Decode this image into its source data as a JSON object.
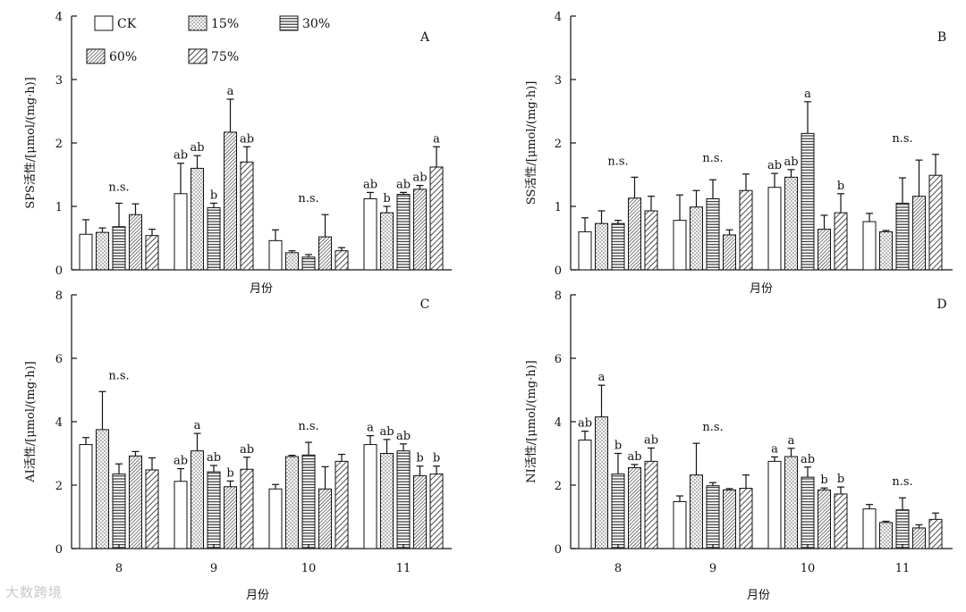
{
  "legend": {
    "items": [
      {
        "label": "CK",
        "pattern": "blank"
      },
      {
        "label": "15%",
        "pattern": "dots"
      },
      {
        "label": "30%",
        "pattern": "hlines"
      },
      {
        "label": "60%",
        "pattern": "diag-dense"
      },
      {
        "label": "75%",
        "pattern": "diag"
      }
    ]
  },
  "watermark": "大数跨境",
  "chart_data": [
    {
      "id": "A",
      "type": "bar",
      "panel_letter": "A",
      "ylabel": "SPS活性/[μmol/(mg·h)]",
      "xlabel": "月份",
      "ylim": [
        0,
        4
      ],
      "yticks": [
        "0",
        "1",
        "2",
        "3",
        "4"
      ],
      "show_xticks": false,
      "categories": [
        "8",
        "9",
        "10",
        "11"
      ],
      "series": [
        {
          "name": "CK",
          "values": [
            0.56,
            1.2,
            0.46,
            1.12
          ],
          "errors": [
            0.23,
            0.48,
            0.17,
            0.1
          ]
        },
        {
          "name": "15%",
          "values": [
            0.59,
            1.6,
            0.27,
            0.9
          ],
          "errors": [
            0.07,
            0.2,
            0.03,
            0.1
          ]
        },
        {
          "name": "30%",
          "values": [
            0.68,
            0.98,
            0.2,
            1.19
          ],
          "errors": [
            0.37,
            0.07,
            0.04,
            0.03
          ]
        },
        {
          "name": "60%",
          "values": [
            0.87,
            2.17,
            0.52,
            1.27
          ],
          "errors": [
            0.17,
            0.52,
            0.35,
            0.06
          ]
        },
        {
          "name": "75%",
          "values": [
            0.54,
            1.7,
            0.3,
            1.62
          ],
          "errors": [
            0.1,
            0.24,
            0.05,
            0.32
          ]
        }
      ],
      "group_labels": [
        {
          "group": 0,
          "text": "n.s."
        },
        {
          "group": 2,
          "text": "n.s."
        }
      ],
      "bar_labels": [
        {
          "group": 1,
          "series": 0,
          "text": "ab"
        },
        {
          "group": 1,
          "series": 1,
          "text": "ab"
        },
        {
          "group": 1,
          "series": 2,
          "text": "b"
        },
        {
          "group": 1,
          "series": 3,
          "text": "a"
        },
        {
          "group": 1,
          "series": 4,
          "text": "ab"
        },
        {
          "group": 3,
          "series": 0,
          "text": "ab"
        },
        {
          "group": 3,
          "series": 1,
          "text": "b"
        },
        {
          "group": 3,
          "series": 2,
          "text": "ab"
        },
        {
          "group": 3,
          "series": 3,
          "text": "ab"
        },
        {
          "group": 3,
          "series": 4,
          "text": "a"
        }
      ]
    },
    {
      "id": "B",
      "type": "bar",
      "panel_letter": "B",
      "ylabel": "SS活性/[μmol/(mg·h)]",
      "xlabel": "月份",
      "ylim": [
        0,
        4
      ],
      "yticks": [
        "0",
        "1",
        "2",
        "3",
        "4"
      ],
      "show_xticks": false,
      "categories": [
        "8",
        "9",
        "10",
        "11"
      ],
      "series": [
        {
          "name": "CK",
          "values": [
            0.6,
            0.78,
            1.3,
            0.76
          ],
          "errors": [
            0.22,
            0.4,
            0.22,
            0.13
          ]
        },
        {
          "name": "15%",
          "values": [
            0.73,
            0.99,
            1.46,
            0.6
          ],
          "errors": [
            0.2,
            0.26,
            0.12,
            0.02
          ]
        },
        {
          "name": "30%",
          "values": [
            0.73,
            1.12,
            2.15,
            1.05
          ],
          "errors": [
            0.05,
            0.3,
            0.5,
            0.4
          ]
        },
        {
          "name": "60%",
          "values": [
            1.13,
            0.55,
            0.64,
            1.16
          ],
          "errors": [
            0.33,
            0.08,
            0.22,
            0.57
          ]
        },
        {
          "name": "75%",
          "values": [
            0.93,
            1.25,
            0.9,
            1.49
          ],
          "errors": [
            0.23,
            0.26,
            0.3,
            0.33
          ]
        }
      ],
      "group_labels": [
        {
          "group": 0,
          "text": "n.s."
        },
        {
          "group": 1,
          "text": "n.s."
        },
        {
          "group": 3,
          "text": "n.s."
        }
      ],
      "bar_labels": [
        {
          "group": 2,
          "series": 0,
          "text": "ab"
        },
        {
          "group": 2,
          "series": 1,
          "text": "ab"
        },
        {
          "group": 2,
          "series": 2,
          "text": "a"
        },
        {
          "group": 2,
          "series": 4,
          "text": "b"
        }
      ]
    },
    {
      "id": "C",
      "type": "bar",
      "panel_letter": "C",
      "ylabel": "AI活性/[μmol/(mg·h)]",
      "xlabel": "月份",
      "ylim": [
        0,
        8
      ],
      "yticks": [
        "0",
        "2",
        "4",
        "6",
        "8"
      ],
      "show_xticks": true,
      "categories": [
        "8",
        "9",
        "10",
        "11"
      ],
      "series": [
        {
          "name": "CK",
          "values": [
            3.28,
            2.12,
            1.88,
            3.28
          ],
          "errors": [
            0.22,
            0.4,
            0.14,
            0.28
          ]
        },
        {
          "name": "15%",
          "values": [
            3.75,
            3.08,
            2.9,
            3.0
          ],
          "errors": [
            1.2,
            0.55,
            0.04,
            0.44
          ]
        },
        {
          "name": "30%",
          "values": [
            2.35,
            2.42,
            2.95,
            3.08
          ],
          "errors": [
            0.32,
            0.2,
            0.4,
            0.22
          ]
        },
        {
          "name": "60%",
          "values": [
            2.92,
            1.95,
            1.88,
            2.3
          ],
          "errors": [
            0.14,
            0.18,
            0.7,
            0.3
          ]
        },
        {
          "name": "75%",
          "values": [
            2.48,
            2.5,
            2.75,
            2.35
          ],
          "errors": [
            0.38,
            0.38,
            0.22,
            0.25
          ]
        }
      ],
      "group_labels": [
        {
          "group": 0,
          "text": "n.s."
        },
        {
          "group": 2,
          "text": "n.s."
        }
      ],
      "bar_labels": [
        {
          "group": 1,
          "series": 0,
          "text": "ab"
        },
        {
          "group": 1,
          "series": 1,
          "text": "a"
        },
        {
          "group": 1,
          "series": 2,
          "text": "ab"
        },
        {
          "group": 1,
          "series": 3,
          "text": "b"
        },
        {
          "group": 1,
          "series": 4,
          "text": "ab"
        },
        {
          "group": 3,
          "series": 0,
          "text": "a"
        },
        {
          "group": 3,
          "series": 1,
          "text": "ab"
        },
        {
          "group": 3,
          "series": 2,
          "text": "ab"
        },
        {
          "group": 3,
          "series": 3,
          "text": "b"
        },
        {
          "group": 3,
          "series": 4,
          "text": "b"
        }
      ]
    },
    {
      "id": "D",
      "type": "bar",
      "panel_letter": "D",
      "ylabel": "NI活性/[μmol/(mg·h)]",
      "xlabel": "月份",
      "ylim": [
        0,
        8
      ],
      "yticks": [
        "0",
        "2",
        "4",
        "6",
        "8"
      ],
      "show_xticks": true,
      "categories": [
        "8",
        "9",
        "10",
        "11"
      ],
      "series": [
        {
          "name": "CK",
          "values": [
            3.42,
            1.48,
            2.75,
            1.25
          ],
          "errors": [
            0.28,
            0.18,
            0.14,
            0.14
          ]
        },
        {
          "name": "15%",
          "values": [
            4.15,
            2.32,
            2.9,
            0.82
          ],
          "errors": [
            1.0,
            1.0,
            0.26,
            0.04
          ]
        },
        {
          "name": "30%",
          "values": [
            2.35,
            1.98,
            2.25,
            1.22
          ],
          "errors": [
            0.65,
            0.1,
            0.32,
            0.38
          ]
        },
        {
          "name": "60%",
          "values": [
            2.55,
            1.85,
            1.85,
            0.65
          ],
          "errors": [
            0.1,
            0.04,
            0.06,
            0.1
          ]
        },
        {
          "name": "75%",
          "values": [
            2.75,
            1.9,
            1.72,
            0.92
          ],
          "errors": [
            0.42,
            0.42,
            0.22,
            0.2
          ]
        }
      ],
      "group_labels": [
        {
          "group": 1,
          "text": "n.s."
        },
        {
          "group": 3,
          "text": "n.s."
        }
      ],
      "bar_labels": [
        {
          "group": 0,
          "series": 0,
          "text": "ab"
        },
        {
          "group": 0,
          "series": 1,
          "text": "a"
        },
        {
          "group": 0,
          "series": 2,
          "text": "b"
        },
        {
          "group": 0,
          "series": 3,
          "text": "ab"
        },
        {
          "group": 0,
          "series": 4,
          "text": "ab"
        },
        {
          "group": 2,
          "series": 0,
          "text": "a"
        },
        {
          "group": 2,
          "series": 1,
          "text": "a"
        },
        {
          "group": 2,
          "series": 2,
          "text": "ab"
        },
        {
          "group": 2,
          "series": 3,
          "text": "b"
        },
        {
          "group": 2,
          "series": 4,
          "text": "b"
        }
      ]
    }
  ]
}
